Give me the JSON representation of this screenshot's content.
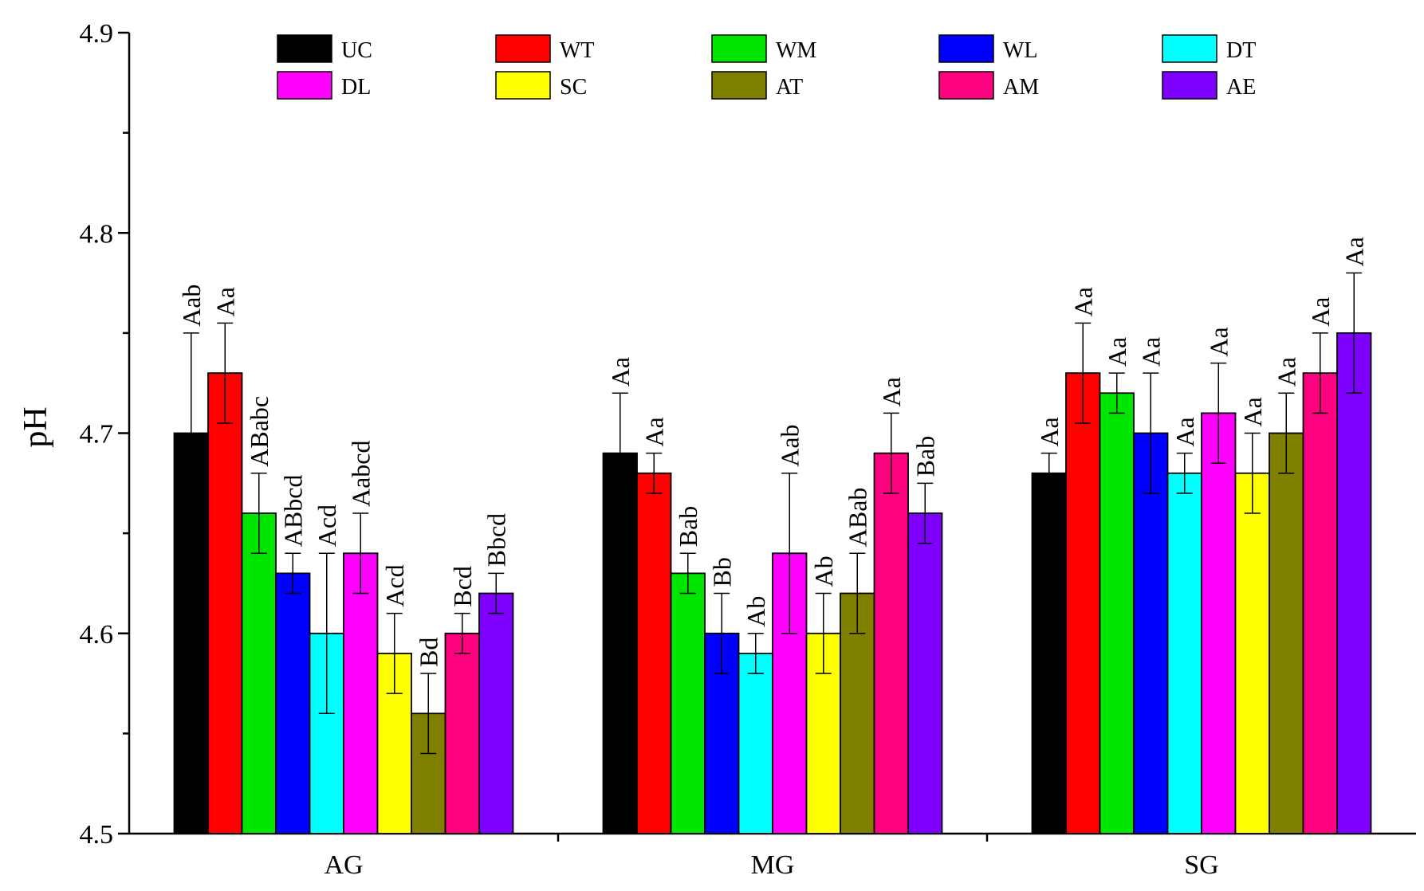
{
  "chart_data": {
    "type": "bar",
    "title": "",
    "xlabel": "",
    "ylabel": "pH",
    "ylim": [
      4.5,
      4.9
    ],
    "yticks": [
      "4.5",
      "4.6",
      "4.7",
      "4.8",
      "4.9"
    ],
    "categories": [
      "AG",
      "MG",
      "SG"
    ],
    "grid": false,
    "legend_position": "top",
    "series": [
      {
        "name": "UC",
        "color": "#000000",
        "values": [
          4.7,
          4.69,
          4.68
        ],
        "errors": [
          0.05,
          0.03,
          0.01
        ],
        "labels": [
          "Aab",
          "Aa",
          "Aa"
        ]
      },
      {
        "name": "WT",
        "color": "#ff0000",
        "values": [
          4.73,
          4.68,
          4.73
        ],
        "errors": [
          0.025,
          0.01,
          0.025
        ],
        "labels": [
          "Aa",
          "Aa",
          "Aa"
        ]
      },
      {
        "name": "WM",
        "color": "#00e600",
        "values": [
          4.66,
          4.63,
          4.72
        ],
        "errors": [
          0.02,
          0.01,
          0.01
        ],
        "labels": [
          "ABabc",
          "Bab",
          "Aa"
        ]
      },
      {
        "name": "WL",
        "color": "#0000ff",
        "values": [
          4.63,
          4.6,
          4.7
        ],
        "errors": [
          0.01,
          0.02,
          0.03
        ],
        "labels": [
          "ABbcd",
          "Bb",
          "Aa"
        ]
      },
      {
        "name": "DT",
        "color": "#00ffff",
        "values": [
          4.6,
          4.59,
          4.68
        ],
        "errors": [
          0.04,
          0.01,
          0.01
        ],
        "labels": [
          "Acd",
          "Ab",
          "Aa"
        ]
      },
      {
        "name": "DL",
        "color": "#ff00ff",
        "values": [
          4.64,
          4.64,
          4.71
        ],
        "errors": [
          0.02,
          0.04,
          0.025
        ],
        "labels": [
          "Aabcd",
          "Aab",
          "Aa"
        ]
      },
      {
        "name": "SC",
        "color": "#ffff00",
        "values": [
          4.59,
          4.6,
          4.68
        ],
        "errors": [
          0.02,
          0.02,
          0.02
        ],
        "labels": [
          "Acd",
          "Ab",
          "Aa"
        ]
      },
      {
        "name": "AT",
        "color": "#808000",
        "values": [
          4.56,
          4.62,
          4.7
        ],
        "errors": [
          0.02,
          0.02,
          0.02
        ],
        "labels": [
          "Bd",
          "ABab",
          "Aa"
        ]
      },
      {
        "name": "AM",
        "color": "#ff0080",
        "values": [
          4.6,
          4.69,
          4.73
        ],
        "errors": [
          0.01,
          0.02,
          0.02
        ],
        "labels": [
          "Bcd",
          "Aa",
          "Aa"
        ]
      },
      {
        "name": "AE",
        "color": "#8000ff",
        "values": [
          4.62,
          4.66,
          4.75
        ],
        "errors": [
          0.01,
          0.015,
          0.03
        ],
        "labels": [
          "Bbcd",
          "Bab",
          "Aa"
        ]
      }
    ]
  }
}
